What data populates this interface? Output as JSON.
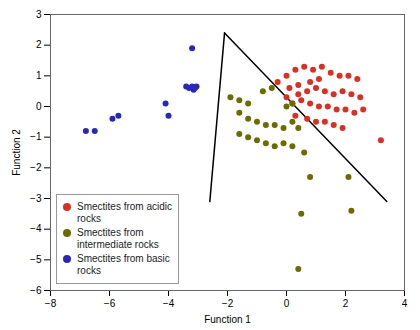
{
  "chart_data": {
    "type": "scatter",
    "xlabel": "Function 1",
    "ylabel": "Function 2",
    "xlim": [
      -8,
      4
    ],
    "ylim": [
      -6,
      3
    ],
    "xticks": [
      -8,
      -6,
      -4,
      -2,
      0,
      2,
      4
    ],
    "yticks": [
      -6,
      -5,
      -4,
      -3,
      -2,
      -1,
      0,
      1,
      2,
      3
    ],
    "grid": false,
    "legend": "lower left",
    "series": [
      {
        "name": "Smectites from acidic\nrocks",
        "type": "scatter",
        "color": "#d93025",
        "values": [
          [
            -0.3,
            0.8
          ],
          [
            0.0,
            1.0
          ],
          [
            0.3,
            1.2
          ],
          [
            0.6,
            1.3
          ],
          [
            0.9,
            1.2
          ],
          [
            1.2,
            1.3
          ],
          [
            1.5,
            1.1
          ],
          [
            1.8,
            1.0
          ],
          [
            2.1,
            1.0
          ],
          [
            2.4,
            0.9
          ],
          [
            0.1,
            0.6
          ],
          [
            0.4,
            0.7
          ],
          [
            0.7,
            0.5
          ],
          [
            1.0,
            0.6
          ],
          [
            1.3,
            0.5
          ],
          [
            1.6,
            0.4
          ],
          [
            1.9,
            0.5
          ],
          [
            2.2,
            0.4
          ],
          [
            2.5,
            0.3
          ],
          [
            0.2,
            0.1
          ],
          [
            0.5,
            0.2
          ],
          [
            0.8,
            0.1
          ],
          [
            1.1,
            0.0
          ],
          [
            1.4,
            0.0
          ],
          [
            1.7,
            -0.1
          ],
          [
            2.0,
            -0.1
          ],
          [
            2.3,
            -0.2
          ],
          [
            2.6,
            -0.1
          ],
          [
            0.3,
            -0.3
          ],
          [
            0.7,
            -0.4
          ],
          [
            1.0,
            -0.5
          ],
          [
            1.3,
            -0.5
          ],
          [
            1.6,
            -0.6
          ],
          [
            1.9,
            -0.7
          ],
          [
            3.2,
            -1.1
          ],
          [
            0.0,
            0.3
          ],
          [
            0.4,
            0.4
          ],
          [
            0.8,
            0.8
          ],
          [
            1.1,
            0.9
          ]
        ]
      },
      {
        "name": "Smectites from\nintermediate rocks",
        "type": "scatter",
        "color": "#6b6b00",
        "values": [
          [
            -1.9,
            0.3
          ],
          [
            -1.6,
            0.2
          ],
          [
            -1.3,
            0.1
          ],
          [
            -1.6,
            -0.2
          ],
          [
            -1.3,
            -0.4
          ],
          [
            -1.0,
            -0.5
          ],
          [
            -0.7,
            -0.6
          ],
          [
            -0.4,
            -0.6
          ],
          [
            -0.1,
            -0.7
          ],
          [
            0.2,
            -0.5
          ],
          [
            0.4,
            -0.7
          ],
          [
            -1.6,
            -0.9
          ],
          [
            -1.3,
            -1.0
          ],
          [
            -1.0,
            -1.1
          ],
          [
            -0.7,
            -1.2
          ],
          [
            -0.4,
            -1.3
          ],
          [
            -0.1,
            -1.2
          ],
          [
            0.2,
            -1.3
          ],
          [
            0.6,
            -1.5
          ],
          [
            0.8,
            -2.3
          ],
          [
            0.5,
            -3.5
          ],
          [
            0.4,
            -5.3
          ],
          [
            2.1,
            -2.3
          ],
          [
            2.2,
            -3.4
          ],
          [
            -0.8,
            0.5
          ],
          [
            -0.5,
            0.6
          ],
          [
            0.0,
            0.0
          ],
          [
            0.2,
            0.1
          ]
        ]
      },
      {
        "name": "Smectites from basic\nrocks",
        "type": "scatter",
        "color": "#2828b8",
        "values": [
          [
            -6.8,
            -0.8
          ],
          [
            -6.5,
            -0.8
          ],
          [
            -5.9,
            -0.4
          ],
          [
            -5.7,
            -0.3
          ],
          [
            -4.1,
            0.1
          ],
          [
            -4.0,
            -0.3
          ],
          [
            -3.4,
            0.65
          ],
          [
            -3.3,
            0.6
          ],
          [
            -3.2,
            0.65
          ],
          [
            -3.15,
            0.55
          ],
          [
            -3.1,
            0.6
          ],
          [
            -3.05,
            0.65
          ],
          [
            -3.2,
            1.9
          ]
        ]
      },
      {
        "type": "line",
        "color": "#000000",
        "values": [
          [
            -2.1,
            2.4
          ],
          [
            -2.6,
            -3.1
          ]
        ]
      },
      {
        "type": "line",
        "color": "#000000",
        "values": [
          [
            -2.1,
            2.4
          ],
          [
            3.4,
            -3.1
          ]
        ]
      }
    ]
  }
}
